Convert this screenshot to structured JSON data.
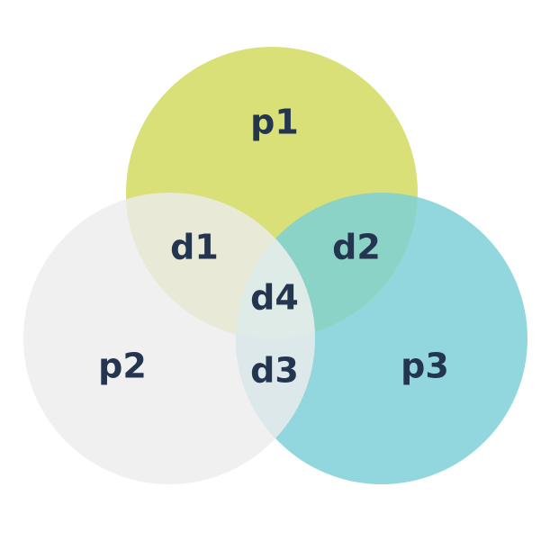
{
  "venn": {
    "sets": [
      {
        "key": "p1",
        "label": "p1",
        "color": "#D9E078"
      },
      {
        "key": "p2",
        "label": "p2",
        "color": "#F0F0F0"
      },
      {
        "key": "p3",
        "label": "p3",
        "color": "#92D7DD"
      }
    ],
    "intersections": [
      {
        "key": "d1",
        "label": "d1",
        "sets": [
          "p1",
          "p2"
        ],
        "color": "#E8EAD7"
      },
      {
        "key": "d2",
        "label": "d2",
        "sets": [
          "p1",
          "p3"
        ],
        "color": "#8CD3C7"
      },
      {
        "key": "d3",
        "label": "d3",
        "sets": [
          "p2",
          "p3"
        ],
        "color": "#DDE8EA"
      },
      {
        "key": "d4",
        "label": "d4",
        "sets": [
          "p1",
          "p2",
          "p3"
        ],
        "color": "#DFEBE7"
      }
    ]
  }
}
